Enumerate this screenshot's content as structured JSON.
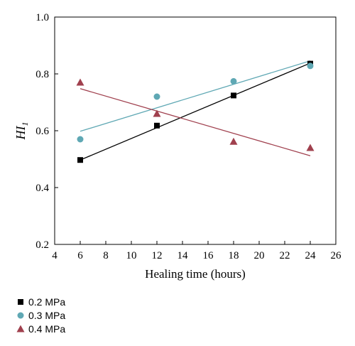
{
  "chart_data": {
    "type": "scatter",
    "xlabel": "Healing time (hours)",
    "ylabel_main": "HI",
    "ylabel_sub": "1",
    "xlim": [
      4,
      26
    ],
    "ylim": [
      0.2,
      1.0
    ],
    "x_ticks": [
      4,
      6,
      8,
      10,
      12,
      14,
      16,
      18,
      20,
      22,
      24,
      26
    ],
    "y_ticks": [
      0.2,
      0.4,
      0.6,
      0.8,
      1.0
    ],
    "x_tick_labels": [
      "4",
      "6",
      "8",
      "10",
      "12",
      "14",
      "16",
      "18",
      "20",
      "22",
      "24",
      "26"
    ],
    "y_tick_labels": [
      "0.2",
      "0.4",
      "0.6",
      "0.8",
      "1.0"
    ],
    "grid": false,
    "legend_position": "bottom-left, below plot",
    "series": [
      {
        "name": "0.2 MPa",
        "marker": "square",
        "color": "#000000",
        "x": [
          6,
          12,
          18,
          24
        ],
        "y": [
          0.497,
          0.618,
          0.724,
          0.836
        ],
        "fit": [
          [
            6,
            0.497
          ],
          [
            24,
            0.838
          ]
        ]
      },
      {
        "name": "0.3 MPa",
        "marker": "circle",
        "color": "#5fa8b4",
        "x": [
          6,
          12,
          18,
          24
        ],
        "y": [
          0.57,
          0.72,
          0.774,
          0.828
        ],
        "fit": [
          [
            6,
            0.598
          ],
          [
            24,
            0.846
          ]
        ]
      },
      {
        "name": "0.4 MPa",
        "marker": "triangle",
        "color": "#a0404e",
        "x": [
          6,
          12,
          18,
          24
        ],
        "y": [
          0.77,
          0.66,
          0.562,
          0.54
        ],
        "fit": [
          [
            6,
            0.748
          ],
          [
            24,
            0.512
          ]
        ]
      }
    ]
  }
}
